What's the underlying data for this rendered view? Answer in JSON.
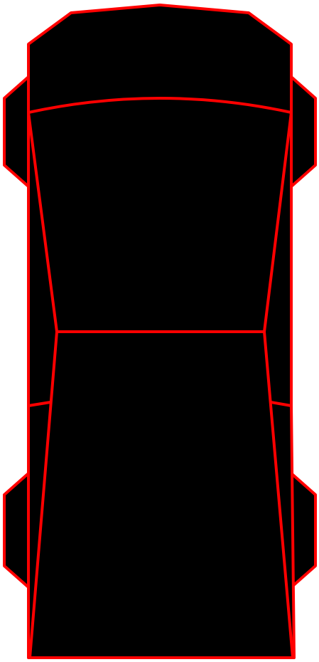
{
  "drawing": {
    "subject": "car-top-view",
    "colors": {
      "background": "#ffffff",
      "body_fill": "#000000",
      "outline": "#ff0000"
    }
  }
}
